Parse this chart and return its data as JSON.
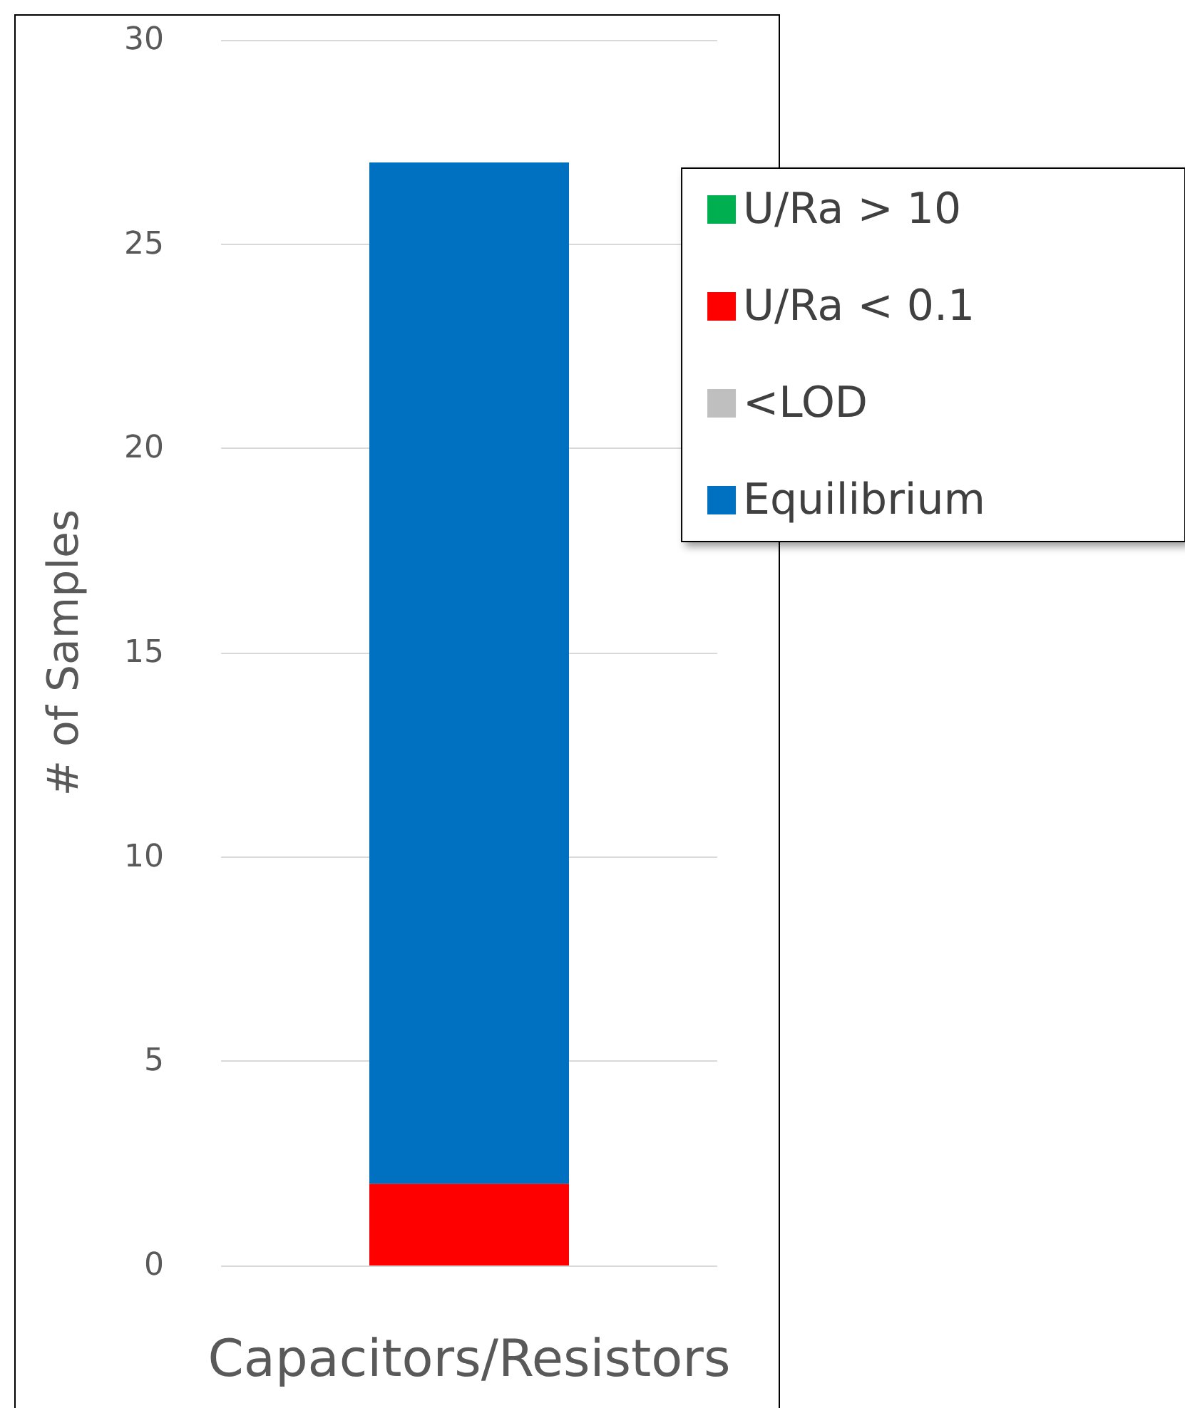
{
  "chart_data": {
    "type": "bar",
    "ylabel": "# of Samples",
    "categories": [
      "Capacitors/Resistors"
    ],
    "series": [
      {
        "name": "U/Ra > 10",
        "color": "#00b050",
        "values": [
          0
        ]
      },
      {
        "name": "U/Ra < 0.1",
        "color": "#ff0000",
        "values": [
          2
        ]
      },
      {
        "name": "<LOD",
        "color": "#bfbfbf",
        "values": [
          0
        ]
      },
      {
        "name": "Equilibrium",
        "color": "#0070c0",
        "values": [
          25
        ]
      }
    ],
    "stacked": true,
    "ylim": [
      0,
      30
    ],
    "yticks": [
      0,
      5,
      10,
      15,
      20,
      25,
      30
    ],
    "grid": "y",
    "legend": "top right"
  }
}
